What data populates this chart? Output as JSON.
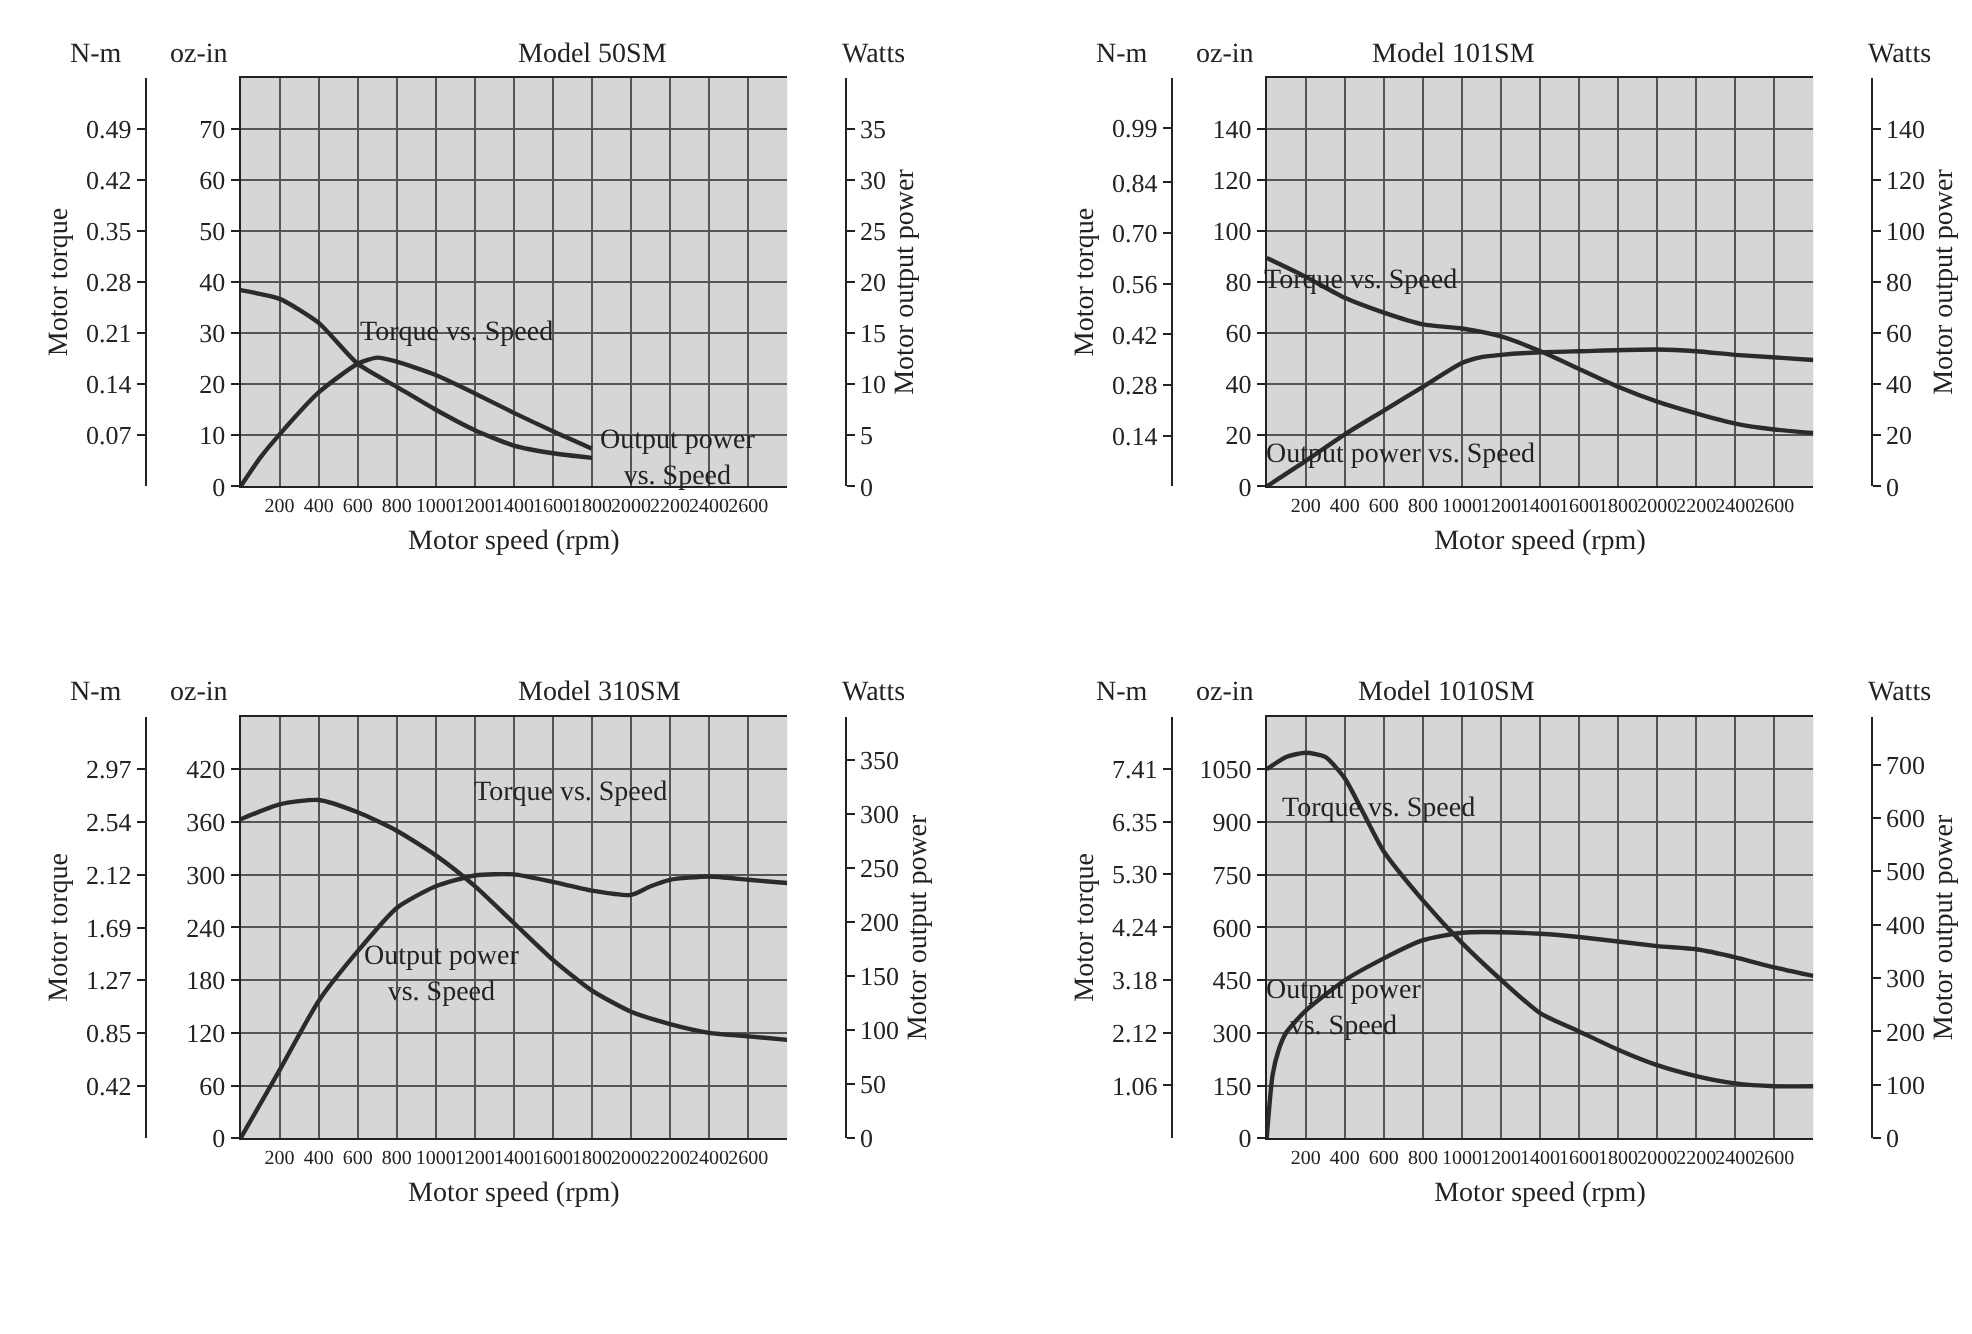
{
  "chart_data": [
    {
      "type": "line",
      "title": "Model 50SM",
      "xlabel": "Motor speed (rpm)",
      "ylabel": "Motor torque",
      "y2label": "Motor output power",
      "annotations": [
        "N-m",
        "oz-in",
        "Watts"
      ],
      "xlim": [
        0,
        2800
      ],
      "xticks": [
        200,
        400,
        600,
        800,
        1000,
        1200,
        1400,
        1600,
        1800,
        2000,
        2200,
        2400,
        2600
      ],
      "ylim": [
        0,
        80
      ],
      "yticks": [
        0,
        10,
        20,
        30,
        40,
        50,
        60,
        70
      ],
      "y3lim": [
        0,
        0.56
      ],
      "y3ticks": [
        0.07,
        0.14,
        0.21,
        0.28,
        0.35,
        0.42,
        0.49
      ],
      "y2lim": [
        0,
        40
      ],
      "y2ticks": [
        0,
        5,
        10,
        15,
        20,
        25,
        30,
        35
      ],
      "grid": true,
      "legend": false,
      "series": [
        {
          "name": "Torque vs. Speed",
          "color": "#2b2b2b",
          "x": [
            0,
            200,
            400,
            600,
            800,
            1000,
            1200,
            1400,
            1600,
            1800
          ],
          "values": [
            38.4,
            36.7,
            32,
            24,
            19.5,
            15,
            11,
            8,
            6.5,
            5.6
          ]
        },
        {
          "name": "Output power\nvs. Speed",
          "color": "#2b2b2b",
          "axis": "y2",
          "x": [
            0,
            100,
            200,
            400,
            600,
            700,
            800,
            1000,
            1200,
            1400,
            1600,
            1800
          ],
          "values": [
            0,
            2.8,
            5.1,
            9.2,
            12,
            12.6,
            12.2,
            10.9,
            9.1,
            7.2,
            5.4,
            3.7
          ]
        }
      ]
    },
    {
      "type": "line",
      "title": "Model 101SM",
      "xlabel": "Motor speed (rpm)",
      "ylabel": "Motor torque",
      "y2label": "Motor output power",
      "annotations": [
        "N-m",
        "oz-in",
        "Watts"
      ],
      "xlim": [
        0,
        2800
      ],
      "xticks": [
        200,
        400,
        600,
        800,
        1000,
        1200,
        1400,
        1600,
        1800,
        2000,
        2200,
        2400,
        2600
      ],
      "ylim": [
        0,
        160
      ],
      "yticks": [
        0,
        20,
        40,
        60,
        80,
        100,
        120,
        140
      ],
      "y3lim": [
        0,
        1.13
      ],
      "y3ticks": [
        0.14,
        0.28,
        0.42,
        0.56,
        {
          "value": 0.7,
          "label": "0.70"
        },
        0.84,
        0.99
      ],
      "y2lim": [
        0,
        160
      ],
      "y2ticks": [
        0,
        20,
        40,
        60,
        80,
        100,
        120,
        140
      ],
      "grid": true,
      "legend": false,
      "series": [
        {
          "name": "Torque vs. Speed",
          "color": "#2b2b2b",
          "x": [
            0,
            200,
            400,
            600,
            800,
            1000,
            1200,
            1400,
            1600,
            1800,
            2000,
            2200,
            2400,
            2600,
            2800
          ],
          "values": [
            89.4,
            82,
            73.8,
            68,
            63.4,
            61.8,
            58.7,
            53,
            46,
            39,
            33.2,
            28.6,
            24.6,
            22.3,
            20.9
          ]
        },
        {
          "name": "Output power vs. Speed",
          "color": "#2b2b2b",
          "axis": "y2",
          "x": [
            0,
            200,
            400,
            600,
            800,
            1000,
            1100,
            1200,
            1400,
            1600,
            2000,
            2200,
            2400,
            2800
          ],
          "values": [
            0,
            10,
            20.4,
            29.7,
            39,
            48.3,
            50.6,
            51.5,
            52.5,
            52.9,
            53.6,
            52.9,
            51.5,
            49.5
          ]
        }
      ]
    },
    {
      "type": "line",
      "title": "Model 310SM",
      "xlabel": "Motor speed (rpm)",
      "ylabel": "Motor torque",
      "y2label": "Motor output power",
      "annotations": [
        "N-m",
        "oz-in",
        "Watts"
      ],
      "xlim": [
        0,
        2800
      ],
      "xticks": [
        200,
        400,
        600,
        800,
        1000,
        1200,
        1400,
        1600,
        1800,
        2000,
        2200,
        2400,
        2600
      ],
      "ylim": [
        0,
        480
      ],
      "yticks": [
        0,
        60,
        120,
        180,
        240,
        300,
        360,
        420
      ],
      "y3lim": [
        0,
        3.39
      ],
      "y3ticks": [
        0.42,
        0.85,
        1.27,
        1.69,
        2.12,
        2.54,
        2.97
      ],
      "y2lim": [
        0,
        390
      ],
      "y2ticks": [
        0,
        50,
        100,
        150,
        200,
        250,
        300,
        350
      ],
      "grid": true,
      "legend": false,
      "series": [
        {
          "name": "Torque vs. Speed",
          "color": "#2b2b2b",
          "x": [
            0,
            200,
            400,
            600,
            800,
            1000,
            1200,
            1400,
            1600,
            1800,
            2000,
            2200,
            2400,
            2600,
            2800
          ],
          "values": [
            363,
            380,
            385,
            371,
            350,
            322,
            287,
            245,
            203,
            168,
            144,
            130,
            120,
            116,
            112
          ]
        },
        {
          "name": "Output power\nvs. Speed",
          "color": "#2b2b2b",
          "axis": "y2",
          "x": [
            0,
            200,
            400,
            600,
            800,
            1000,
            1200,
            1400,
            1600,
            1800,
            2000,
            2100,
            2200,
            2400,
            2600,
            2800
          ],
          "values": [
            0,
            63,
            127,
            173,
            213,
            233,
            243,
            244,
            237,
            229,
            225,
            233,
            239,
            242,
            239,
            236
          ]
        }
      ]
    },
    {
      "type": "line",
      "title": "Model 1010SM",
      "xlabel": "Motor speed (rpm)",
      "ylabel": "Motor torque",
      "y2label": "Motor output power",
      "annotations": [
        "N-m",
        "oz-in",
        "Watts"
      ],
      "xlim": [
        0,
        2800
      ],
      "xticks": [
        200,
        400,
        600,
        800,
        1000,
        1200,
        1400,
        1600,
        1800,
        2000,
        2200,
        2400,
        2600
      ],
      "ylim": [
        0,
        1200
      ],
      "yticks": [
        0,
        150,
        300,
        450,
        600,
        750,
        900,
        1050
      ],
      "y3lim": [
        0,
        8.47
      ],
      "y3ticks": [
        1.06,
        2.12,
        3.18,
        4.24,
        {
          "value": 5.3,
          "label": "5.30"
        },
        6.35,
        7.41
      ],
      "y2lim": [
        0,
        790
      ],
      "y2ticks": [
        0,
        100,
        200,
        300,
        400,
        500,
        600,
        700
      ],
      "grid": true,
      "legend": false,
      "series": [
        {
          "name": "Torque vs. Speed",
          "color": "#2b2b2b",
          "x": [
            0,
            100,
            200,
            300,
            400,
            500,
            600,
            800,
            1000,
            1200,
            1400,
            1600,
            1800,
            2000,
            2200,
            2400,
            2600,
            2800
          ],
          "values": [
            1050,
            1085,
            1097,
            1085,
            1024,
            920,
            816,
            677,
            556,
            451,
            356,
            304,
            252,
            208,
            177,
            156,
            148,
            148
          ]
        },
        {
          "name": "Output power\nvs. Speed",
          "color": "#2b2b2b",
          "axis": "y2",
          "x": [
            0,
            30,
            60,
            100,
            200,
            400,
            600,
            800,
            1000,
            1200,
            1400,
            1600,
            2000,
            2200,
            2400,
            2600,
            2800
          ],
          "values": [
            0,
            118,
            164,
            198,
            239,
            296,
            337,
            371,
            385,
            386,
            383,
            377,
            360,
            354,
            339,
            320,
            304
          ]
        }
      ]
    }
  ]
}
